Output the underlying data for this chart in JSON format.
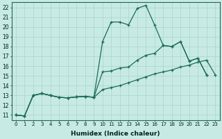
{
  "xlabel": "Humidex (Indice chaleur)",
  "xlim": [
    -0.5,
    23.5
  ],
  "ylim": [
    10.5,
    22.5
  ],
  "xticks": [
    0,
    1,
    2,
    3,
    4,
    5,
    6,
    7,
    8,
    9,
    10,
    11,
    12,
    13,
    14,
    15,
    16,
    17,
    18,
    19,
    20,
    21,
    22,
    23
  ],
  "yticks": [
    11,
    12,
    13,
    14,
    15,
    16,
    17,
    18,
    19,
    20,
    21,
    22
  ],
  "bg_color": "#c8eae4",
  "grid_color": "#a8d4cc",
  "line_color": "#1a6b5a",
  "line1_x": [
    0,
    1,
    2,
    3,
    4,
    5,
    6,
    7,
    8,
    9,
    10,
    11,
    12,
    13,
    14,
    15,
    16,
    17,
    18,
    19,
    20,
    21,
    22
  ],
  "line1_y": [
    11.0,
    10.9,
    13.0,
    13.2,
    13.0,
    12.8,
    12.75,
    12.85,
    12.9,
    12.8,
    18.5,
    20.5,
    20.5,
    20.2,
    21.9,
    22.2,
    20.2,
    18.1,
    18.0,
    18.5,
    16.5,
    16.8,
    15.1
  ],
  "line2_x": [
    0,
    1,
    2,
    3,
    4,
    5,
    6,
    7,
    8,
    9,
    10,
    11,
    12,
    13,
    14,
    15,
    16,
    17,
    18,
    19,
    20,
    21,
    22
  ],
  "line2_y": [
    11.0,
    10.9,
    13.0,
    13.2,
    13.0,
    12.8,
    12.75,
    12.85,
    12.9,
    12.8,
    15.4,
    15.5,
    15.8,
    15.9,
    16.6,
    17.1,
    17.3,
    18.1,
    18.0,
    18.5,
    16.5,
    16.8,
    15.1
  ],
  "line3_x": [
    0,
    1,
    2,
    3,
    4,
    5,
    6,
    7,
    8,
    9,
    10,
    11,
    12,
    13,
    14,
    15,
    16,
    17,
    18,
    19,
    20,
    21,
    22,
    23
  ],
  "line3_y": [
    11.0,
    10.9,
    13.0,
    13.2,
    13.0,
    12.8,
    12.75,
    12.85,
    12.9,
    12.8,
    13.6,
    13.8,
    14.0,
    14.3,
    14.6,
    14.9,
    15.2,
    15.4,
    15.6,
    15.9,
    16.1,
    16.4,
    16.6,
    15.1
  ]
}
